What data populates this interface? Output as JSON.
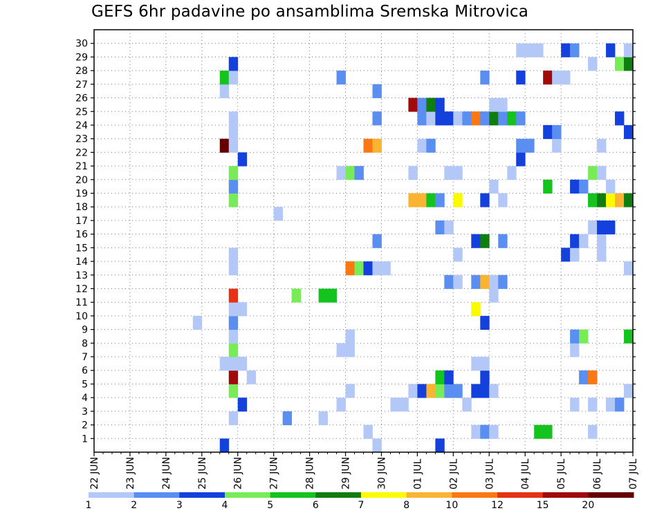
{
  "chart_data": {
    "type": "heatmap",
    "title": "GEFS 6hr padavine po ansamblima Sremska Mitrovica",
    "xlabel": "",
    "ylabel": "",
    "x_ticks": [
      "22 JUN",
      "23 JUN",
      "24 JUN",
      "25 JUN",
      "26 JUN",
      "27 JUN",
      "28 JUN",
      "29 JUN",
      "30 JUN",
      "01 JUL",
      "02 JUL",
      "03 JUL",
      "04 JUL",
      "05 JUL",
      "06 JUL",
      "07 JUL"
    ],
    "x_steps_per_day": 4,
    "x_total_steps": 60,
    "y_ticks": [
      1,
      2,
      3,
      4,
      5,
      6,
      7,
      8,
      9,
      10,
      11,
      12,
      13,
      14,
      15,
      16,
      17,
      18,
      19,
      20,
      21,
      22,
      23,
      24,
      25,
      26,
      27,
      28,
      29,
      30
    ],
    "y_members": 31,
    "grid": true,
    "legend": {
      "placement": "bottom",
      "labels": [
        "1",
        "2",
        "3",
        "4",
        "5",
        "6",
        "7",
        "8",
        "10",
        "12",
        "15",
        "20"
      ],
      "colors": [
        "#b4c8f8",
        "#5a8ef0",
        "#1440dc",
        "#78ec56",
        "#14c31e",
        "#0f7d0f",
        "#fafa00",
        "#fab432",
        "#fa7814",
        "#e63214",
        "#a00a0a",
        "#640000"
      ]
    },
    "cell_format": "[x_step, member, color_index]",
    "cells": [
      [
        14,
        0,
        2
      ],
      [
        31,
        0,
        0
      ],
      [
        38,
        0,
        2
      ],
      [
        30,
        1,
        0
      ],
      [
        42,
        1,
        0
      ],
      [
        43,
        1,
        1
      ],
      [
        44,
        1,
        0
      ],
      [
        49,
        1,
        4
      ],
      [
        50,
        1,
        4
      ],
      [
        55,
        1,
        0
      ],
      [
        15,
        2,
        0
      ],
      [
        21,
        2,
        1
      ],
      [
        25,
        2,
        0
      ],
      [
        16,
        3,
        2
      ],
      [
        27,
        3,
        0
      ],
      [
        33,
        3,
        0
      ],
      [
        34,
        3,
        0
      ],
      [
        41,
        3,
        0
      ],
      [
        53,
        3,
        0
      ],
      [
        55,
        3,
        0
      ],
      [
        57,
        3,
        0
      ],
      [
        58,
        3,
        1
      ],
      [
        15,
        4,
        3
      ],
      [
        28,
        4,
        0
      ],
      [
        35,
        4,
        0
      ],
      [
        36,
        4,
        2
      ],
      [
        37,
        4,
        7
      ],
      [
        38,
        4,
        3
      ],
      [
        39,
        4,
        1
      ],
      [
        40,
        4,
        1
      ],
      [
        42,
        4,
        2
      ],
      [
        43,
        4,
        2
      ],
      [
        44,
        4,
        0
      ],
      [
        59,
        4,
        0
      ],
      [
        15,
        5,
        10
      ],
      [
        17,
        5,
        0
      ],
      [
        38,
        5,
        4
      ],
      [
        39,
        5,
        2
      ],
      [
        43,
        5,
        2
      ],
      [
        54,
        5,
        1
      ],
      [
        55,
        5,
        8
      ],
      [
        14,
        6,
        0
      ],
      [
        15,
        6,
        0
      ],
      [
        16,
        6,
        0
      ],
      [
        42,
        6,
        0
      ],
      [
        43,
        6,
        0
      ],
      [
        15,
        7,
        3
      ],
      [
        27,
        7,
        0
      ],
      [
        28,
        7,
        0
      ],
      [
        53,
        7,
        0
      ],
      [
        15,
        8,
        0
      ],
      [
        28,
        8,
        0
      ],
      [
        53,
        8,
        1
      ],
      [
        54,
        8,
        3
      ],
      [
        59,
        8,
        4
      ],
      [
        11,
        9,
        0
      ],
      [
        15,
        9,
        1
      ],
      [
        43,
        9,
        2
      ],
      [
        15,
        10,
        0
      ],
      [
        16,
        10,
        0
      ],
      [
        42,
        10,
        6
      ],
      [
        15,
        11,
        9
      ],
      [
        22,
        11,
        3
      ],
      [
        25,
        11,
        4
      ],
      [
        26,
        11,
        4
      ],
      [
        44,
        11,
        0
      ],
      [
        39,
        12,
        1
      ],
      [
        40,
        12,
        0
      ],
      [
        42,
        12,
        1
      ],
      [
        43,
        12,
        7
      ],
      [
        44,
        12,
        0
      ],
      [
        45,
        12,
        1
      ],
      [
        15,
        13,
        0
      ],
      [
        28,
        13,
        8
      ],
      [
        29,
        13,
        3
      ],
      [
        30,
        13,
        2
      ],
      [
        31,
        13,
        0
      ],
      [
        32,
        13,
        0
      ],
      [
        59,
        13,
        0
      ],
      [
        15,
        14,
        0
      ],
      [
        40,
        14,
        0
      ],
      [
        52,
        14,
        2
      ],
      [
        53,
        14,
        0
      ],
      [
        56,
        14,
        0
      ],
      [
        31,
        15,
        1
      ],
      [
        42,
        15,
        2
      ],
      [
        43,
        15,
        5
      ],
      [
        45,
        15,
        1
      ],
      [
        53,
        15,
        2
      ],
      [
        54,
        15,
        0
      ],
      [
        56,
        15,
        0
      ],
      [
        38,
        16,
        1
      ],
      [
        39,
        16,
        0
      ],
      [
        55,
        16,
        0
      ],
      [
        56,
        16,
        2
      ],
      [
        57,
        16,
        2
      ],
      [
        20,
        17,
        0
      ],
      [
        15,
        18,
        3
      ],
      [
        35,
        18,
        7
      ],
      [
        36,
        18,
        7
      ],
      [
        37,
        18,
        4
      ],
      [
        38,
        18,
        1
      ],
      [
        40,
        18,
        6
      ],
      [
        43,
        18,
        2
      ],
      [
        45,
        18,
        0
      ],
      [
        55,
        18,
        4
      ],
      [
        56,
        18,
        5
      ],
      [
        57,
        18,
        6
      ],
      [
        58,
        18,
        7
      ],
      [
        59,
        18,
        5
      ],
      [
        15,
        19,
        1
      ],
      [
        44,
        19,
        0
      ],
      [
        50,
        19,
        4
      ],
      [
        53,
        19,
        2
      ],
      [
        54,
        19,
        1
      ],
      [
        57,
        19,
        0
      ],
      [
        15,
        20,
        3
      ],
      [
        27,
        20,
        0
      ],
      [
        28,
        20,
        3
      ],
      [
        29,
        20,
        1
      ],
      [
        35,
        20,
        0
      ],
      [
        39,
        20,
        0
      ],
      [
        40,
        20,
        0
      ],
      [
        46,
        20,
        0
      ],
      [
        55,
        20,
        3
      ],
      [
        56,
        20,
        0
      ],
      [
        16,
        21,
        2
      ],
      [
        47,
        21,
        2
      ],
      [
        14,
        22,
        11
      ],
      [
        15,
        22,
        0
      ],
      [
        30,
        22,
        8
      ],
      [
        31,
        22,
        7
      ],
      [
        36,
        22,
        0
      ],
      [
        37,
        22,
        1
      ],
      [
        47,
        22,
        1
      ],
      [
        48,
        22,
        1
      ],
      [
        51,
        22,
        0
      ],
      [
        56,
        22,
        0
      ],
      [
        15,
        23,
        0
      ],
      [
        50,
        23,
        2
      ],
      [
        51,
        23,
        1
      ],
      [
        59,
        23,
        2
      ],
      [
        15,
        24,
        0
      ],
      [
        31,
        24,
        1
      ],
      [
        36,
        24,
        1
      ],
      [
        37,
        24,
        0
      ],
      [
        38,
        24,
        2
      ],
      [
        39,
        24,
        2
      ],
      [
        40,
        24,
        0
      ],
      [
        41,
        24,
        1
      ],
      [
        42,
        24,
        8
      ],
      [
        43,
        24,
        1
      ],
      [
        44,
        24,
        5
      ],
      [
        45,
        24,
        1
      ],
      [
        46,
        24,
        4
      ],
      [
        47,
        24,
        1
      ],
      [
        58,
        24,
        2
      ],
      [
        35,
        25,
        10
      ],
      [
        36,
        25,
        1
      ],
      [
        37,
        25,
        5
      ],
      [
        38,
        25,
        2
      ],
      [
        44,
        25,
        0
      ],
      [
        45,
        25,
        0
      ],
      [
        14,
        26,
        0
      ],
      [
        31,
        26,
        1
      ],
      [
        14,
        27,
        4
      ],
      [
        15,
        27,
        0
      ],
      [
        27,
        27,
        1
      ],
      [
        43,
        27,
        1
      ],
      [
        47,
        27,
        2
      ],
      [
        50,
        27,
        10
      ],
      [
        51,
        27,
        0
      ],
      [
        52,
        27,
        0
      ],
      [
        15,
        28,
        2
      ],
      [
        55,
        28,
        0
      ],
      [
        58,
        28,
        3
      ],
      [
        59,
        28,
        5
      ],
      [
        47,
        29,
        0
      ],
      [
        48,
        29,
        0
      ],
      [
        49,
        29,
        0
      ],
      [
        52,
        29,
        2
      ],
      [
        53,
        29,
        1
      ],
      [
        57,
        29,
        2
      ],
      [
        59,
        29,
        0
      ]
    ]
  }
}
